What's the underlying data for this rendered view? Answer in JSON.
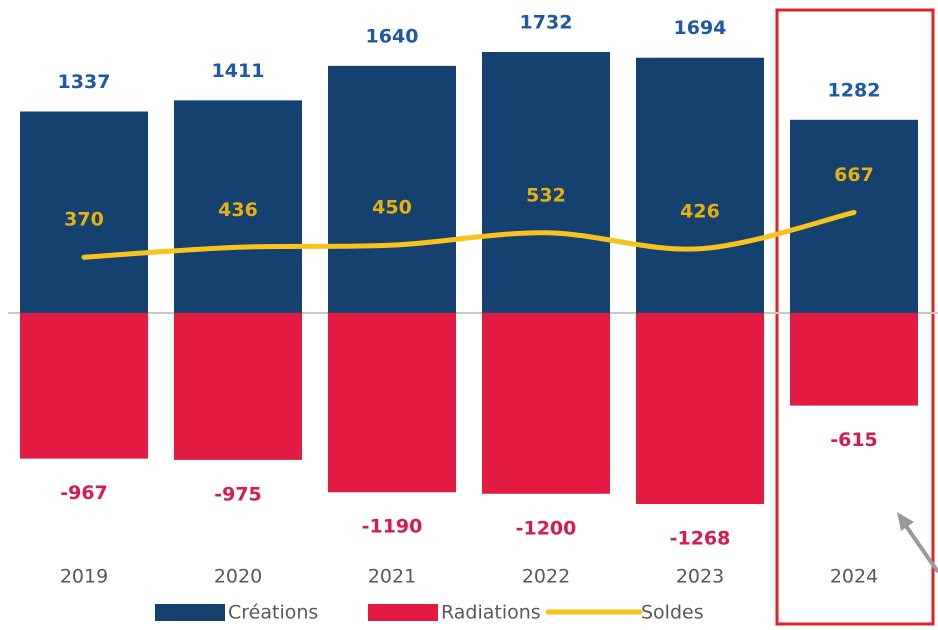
{
  "chart_data": {
    "type": "bar",
    "categories": [
      "2019",
      "2020",
      "2021",
      "2022",
      "2023",
      "2024"
    ],
    "series": [
      {
        "name": "Créations",
        "type": "bar",
        "color": "#14416f",
        "label_color": "#1f58a3",
        "values": [
          1337,
          1411,
          1640,
          1732,
          1694,
          1282
        ]
      },
      {
        "name": "Radiations",
        "type": "bar",
        "color": "#e31b43",
        "label_color": "#d81b48",
        "values": [
          -967,
          -975,
          -1190,
          -1200,
          -1268,
          -615
        ]
      },
      {
        "name": "Soldes",
        "type": "line",
        "color": "#f8c31a",
        "label_color": "#e9b10e",
        "values": [
          370,
          436,
          450,
          532,
          426,
          667
        ]
      }
    ]
  }
}
